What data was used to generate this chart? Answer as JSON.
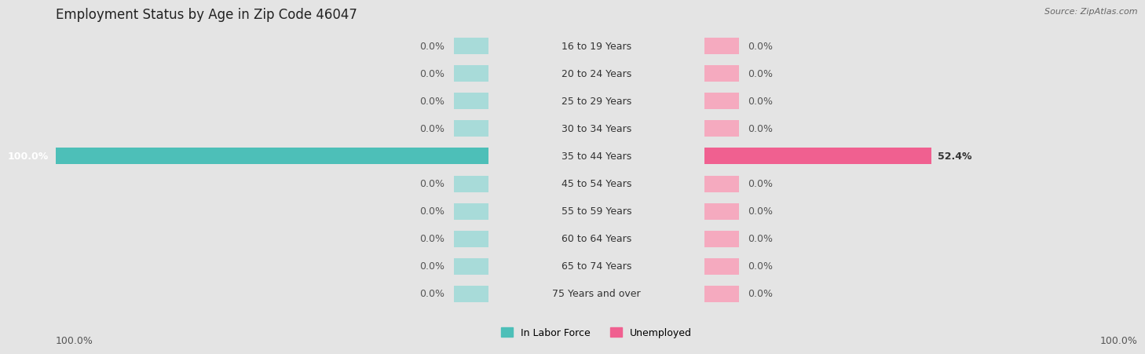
{
  "title": "Employment Status by Age in Zip Code 46047",
  "source": "Source: ZipAtlas.com",
  "categories": [
    "16 to 19 Years",
    "20 to 24 Years",
    "25 to 29 Years",
    "30 to 34 Years",
    "35 to 44 Years",
    "45 to 54 Years",
    "55 to 59 Years",
    "60 to 64 Years",
    "65 to 74 Years",
    "75 Years and over"
  ],
  "labor_force": [
    0.0,
    0.0,
    0.0,
    0.0,
    100.0,
    0.0,
    0.0,
    0.0,
    0.0,
    0.0
  ],
  "unemployed": [
    0.0,
    0.0,
    0.0,
    0.0,
    52.4,
    0.0,
    0.0,
    0.0,
    0.0,
    0.0
  ],
  "labor_force_color": "#4dbfb8",
  "labor_force_color_light": "#a8dbd9",
  "unemployed_color": "#f06090",
  "unemployed_color_light": "#f5aabf",
  "background_color": "#e4e4e4",
  "row_even_color": "#f0f0f0",
  "row_odd_color": "#e6e6e6",
  "bar_height": 0.6,
  "xlim": 100.0,
  "min_bar": 8.0,
  "title_fontsize": 12,
  "label_fontsize": 9,
  "value_fontsize": 9,
  "tick_fontsize": 9,
  "legend_fontsize": 9,
  "axis_label_left": "100.0%",
  "axis_label_right": "100.0%"
}
